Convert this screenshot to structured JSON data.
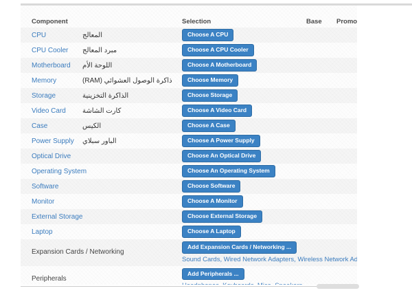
{
  "header": {
    "component": "Component",
    "selection": "Selection",
    "base": "Base",
    "promo": "Promo"
  },
  "rows": [
    {
      "name": "CPU",
      "arabic": "المعالج",
      "button": "Choose A CPU"
    },
    {
      "name": "CPU Cooler",
      "arabic": "مبرد المعالج",
      "button": "Choose A CPU Cooler"
    },
    {
      "name": "Motherboard",
      "arabic": "اللوحة الأم",
      "button": "Choose A Motherboard"
    },
    {
      "name": "Memory",
      "arabic": "ذاكرة الوصول العشوائي (RAM)",
      "button": "Choose Memory"
    },
    {
      "name": "Storage",
      "arabic": "الذاكرة التخزينية",
      "button": "Choose Storage"
    },
    {
      "name": "Video Card",
      "arabic": "كارت الشاشة",
      "button": "Choose A Video Card"
    },
    {
      "name": "Case",
      "arabic": "الكيس",
      "button": "Choose A Case"
    },
    {
      "name": "Power Supply",
      "arabic": "الباور سبلاي",
      "button": "Choose A Power Supply"
    },
    {
      "name": "Optical Drive",
      "button": "Choose An Optical Drive"
    },
    {
      "name": "Operating System",
      "button": "Choose An Operating System"
    },
    {
      "name": "Software",
      "button": "Choose Software"
    },
    {
      "name": "Monitor",
      "button": "Choose A Monitor"
    },
    {
      "name": "External Storage",
      "button": "Choose External Storage"
    },
    {
      "name": "Laptop",
      "button": "Choose A Laptop"
    },
    {
      "name": "Expansion Cards / Networking",
      "name_is_link": false,
      "button": "Add Expansion Cards / Networking ...",
      "links": [
        "Sound Cards",
        "Wired Network Adapters",
        "Wireless Network Adapters"
      ]
    },
    {
      "name": "Peripherals",
      "name_is_link": false,
      "button": "Add Peripherals ...",
      "links": [
        "Headphones",
        "Keyboards",
        "Mice",
        "Speakers"
      ]
    }
  ],
  "colors": {
    "button_bg": "#3b82c4",
    "button_border": "#2d6ca5",
    "link_blue": "#3b7cbe",
    "stripe": "#f2f2f3",
    "header_text": "#4a4a4a"
  }
}
